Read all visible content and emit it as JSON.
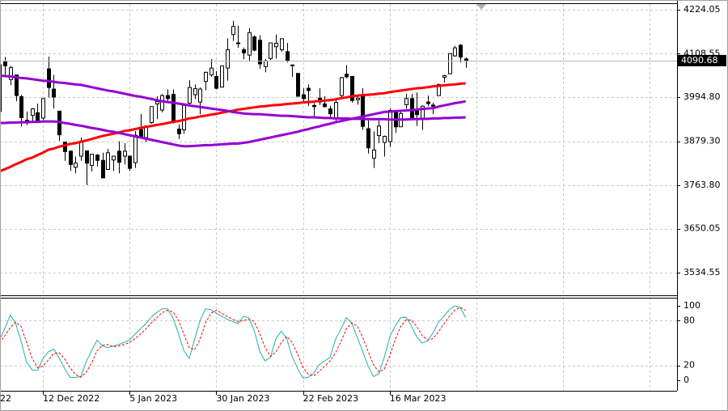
{
  "chart_data": [
    {
      "type": "candlestick",
      "categories": [
        "22",
        null,
        null,
        null,
        null,
        null,
        null,
        null,
        "12 Dec 2022",
        null,
        null,
        null,
        null,
        null,
        null,
        null,
        null,
        null,
        null,
        null,
        null,
        null,
        null,
        null,
        "5 Jan 2023",
        null,
        null,
        null,
        null,
        null,
        null,
        null,
        null,
        null,
        null,
        null,
        null,
        null,
        null,
        null,
        "30 Jan 2023",
        null,
        null,
        null,
        null,
        null,
        null,
        null,
        null,
        null,
        null,
        null,
        null,
        null,
        null,
        null,
        "22 Feb 2023",
        null,
        null,
        null,
        null,
        null,
        null,
        null,
        null,
        null,
        null,
        null,
        null,
        null,
        null,
        null,
        "16 Mar 2023",
        null,
        null,
        null,
        null,
        null,
        null,
        null,
        null,
        null,
        null,
        null,
        null,
        null,
        null
      ],
      "open": [
        3957,
        4087,
        4041,
        4053,
        3996,
        3934,
        3947,
        3954,
        3940,
        4069,
        4016,
        3958,
        3877,
        3853,
        3811,
        3840,
        3854,
        3816,
        3843,
        3829,
        3805,
        3830,
        3853,
        3840,
        3840,
        3823,
        3910,
        3889,
        3928,
        3977,
        3961,
        3999,
        4002,
        3911,
        3909,
        3979,
        4001,
        3982,
        4036,
        4053,
        4049,
        4021,
        4071,
        4159,
        4137,
        4119,
        4105,
        4153,
        4144,
        4075,
        4096,
        4127,
        4119,
        4114,
        4078,
        4057,
        4001,
        4018,
        3973,
        3992,
        3977,
        3964,
        3938,
        3999,
        4055,
        4049,
        3988,
        3999,
        3912,
        3835,
        3894,
        3876,
        3878,
        3959,
        3917,
        3975,
        3991,
        3960,
        3939,
        3982,
        3974,
        3999,
        4047,
        4056,
        4103,
        4131,
        4095
      ],
      "high": [
        4080,
        4100,
        4077,
        4053,
        4001,
        3957,
        3966,
        3978,
        3990,
        4101,
        4053,
        3958,
        3877,
        3855,
        3839,
        3889,
        3854,
        3846,
        3846,
        3849,
        3859,
        3839,
        3879,
        3874,
        3840,
        3906,
        3951,
        3919,
        3970,
        3997,
        4003,
        4015,
        4015,
        3923,
        3973,
        4039,
        4028,
        4020,
        4061,
        4095,
        4063,
        4077,
        4149,
        4195,
        4182,
        4125,
        4176,
        4157,
        4157,
        4095,
        4138,
        4159,
        4149,
        4137,
        4081,
        4057,
        4018,
        4028,
        3979,
        4018,
        3997,
        3972,
        3990,
        4048,
        4079,
        4051,
        4001,
        4018,
        3934,
        3905,
        3937,
        3894,
        3965,
        3959,
        3956,
        4003,
        4003,
        4007,
        3973,
        3999,
        3980,
        4030,
        4053,
        4110,
        4129,
        4134,
        4099
      ],
      "low": [
        3938,
        4050,
        4026,
        3984,
        3918,
        3922,
        3933,
        3934,
        3935,
        3994,
        3965,
        3880,
        3828,
        3801,
        3795,
        3828,
        3764,
        3800,
        3813,
        3782,
        3805,
        3801,
        3795,
        3818,
        3802,
        3809,
        3888,
        3877,
        3925,
        3937,
        3955,
        3985,
        3926,
        3885,
        3899,
        3972,
        3990,
        3950,
        4013,
        4048,
        4015,
        4021,
        4038,
        4142,
        4124,
        4094,
        4088,
        4115,
        4069,
        4060,
        4092,
        4096,
        4114,
        4086,
        4048,
        3996,
        3981,
        3972,
        3943,
        3974,
        3968,
        3940,
        3928,
        3995,
        4044,
        3980,
        3975,
        3909,
        3847,
        3809,
        3874,
        3839,
        3864,
        3901,
        3917,
        3965,
        3937,
        3919,
        3909,
        3971,
        3950,
        3999,
        4033,
        4056,
        4101,
        4086,
        4072
      ],
      "close": [
        4080,
        4077,
        4072,
        3999,
        3941,
        3934,
        3964,
        3934,
        3991,
        4020,
        3995,
        3896,
        3852,
        3818,
        3822,
        3878,
        3822,
        3845,
        3829,
        3783,
        3849,
        3840,
        3824,
        3853,
        3808,
        3895,
        3892,
        3919,
        3970,
        3983,
        3999,
        3991,
        3929,
        3899,
        3973,
        4020,
        4017,
        4016,
        4060,
        4071,
        4018,
        4077,
        4119,
        4180,
        4136,
        4111,
        4164,
        4118,
        4082,
        4090,
        4137,
        4136,
        4148,
        4090,
        4079,
        3997,
        3991,
        4012,
        3970,
        3982,
        3970,
        3951,
        3981,
        4046,
        4048,
        3986,
        3992,
        3918,
        3862,
        3856,
        3919,
        3892,
        3960,
        3917,
        3952,
        3991,
        3937,
        3949,
        3971,
        3978,
        3971,
        4028,
        4051,
        4109,
        4124,
        4100,
        4090.68
      ],
      "up_color": "#ffffff",
      "down_color": "#000000",
      "wick_color": "#000000",
      "overlays": [
        {
          "color": "#ff0000",
          "values": [
            3800,
            3806,
            3812,
            3819,
            3825,
            3832,
            3836,
            3843,
            3849,
            3857,
            3860,
            3865,
            3868,
            3872,
            3874,
            3878,
            3881,
            3885,
            3889,
            3893,
            3896,
            3899,
            3902,
            3906,
            3908,
            3911,
            3914,
            3917,
            3919,
            3922,
            3924,
            3927,
            3930,
            3932,
            3935,
            3939,
            3941,
            3944,
            3946,
            3949,
            3951,
            3954,
            3957,
            3959,
            3962,
            3964,
            3966,
            3968,
            3970,
            3971,
            3973,
            3974,
            3975,
            3977,
            3978,
            3979,
            3981,
            3982,
            3983,
            3985,
            3986,
            3987,
            3989,
            3992,
            3994,
            3997,
            3999,
            4000,
            4001,
            4002,
            4004,
            4005,
            4008,
            4010,
            4012,
            4014,
            4016,
            4018,
            4019,
            4021,
            4023,
            4024,
            4026,
            4027,
            4028,
            4030,
            4031
          ]
        },
        {
          "color": "#9400d3",
          "values": [
            4052,
            4050,
            4049,
            4047,
            4045,
            4044,
            4042,
            4040,
            4038,
            4037,
            4035,
            4033,
            4032,
            4030,
            4028,
            4027,
            4024,
            4021,
            4018,
            4015,
            4012,
            4010,
            4007,
            4004,
            4001,
            3998,
            3996,
            3993,
            3990,
            3987,
            3984,
            3982,
            3980,
            3978,
            3976,
            3973,
            3971,
            3969,
            3967,
            3965,
            3963,
            3961,
            3959,
            3956,
            3954,
            3952,
            3951,
            3950,
            3950,
            3949,
            3948,
            3947,
            3946,
            3946,
            3945,
            3944,
            3943,
            3942,
            3942,
            3941,
            3940,
            3940,
            3939,
            3939,
            3939,
            3938,
            3938,
            3938,
            3937,
            3937,
            3937,
            3937,
            3936,
            3936,
            3936,
            3936,
            3937,
            3937,
            3938,
            3938,
            3939,
            3939,
            3940,
            3940,
            3941,
            3941,
            3942
          ]
        },
        {
          "color": "#9400d3",
          "values": [
            3927,
            3927,
            3928,
            3928,
            3929,
            3929,
            3930,
            3930,
            3931,
            3931,
            3931,
            3930,
            3927,
            3925,
            3922,
            3920,
            3917,
            3914,
            3912,
            3909,
            3906,
            3904,
            3901,
            3898,
            3895,
            3892,
            3889,
            3886,
            3883,
            3880,
            3877,
            3874,
            3871,
            3868,
            3866,
            3866,
            3867,
            3868,
            3869,
            3869,
            3870,
            3871,
            3872,
            3873,
            3873,
            3875,
            3877,
            3880,
            3883,
            3886,
            3889,
            3892,
            3895,
            3898,
            3901,
            3904,
            3908,
            3911,
            3915,
            3918,
            3922,
            3925,
            3929,
            3932,
            3935,
            3938,
            3941,
            3944,
            3947,
            3950,
            3953,
            3956,
            3957,
            3958,
            3959,
            3960,
            3961,
            3962,
            3964,
            3965,
            3966,
            3970,
            3973,
            3976,
            3979,
            3981,
            3984
          ]
        }
      ],
      "last_price": 4090.68,
      "ylim": [
        3475.2,
        4238.9
      ],
      "yticks": [
        4224.05,
        4108.55,
        {
          "value": 3994.8,
          "label": "3994.80"
        },
        {
          "value": 3879.3,
          "label": "3879.30"
        },
        {
          "value": 3763.8,
          "label": "3763.80"
        },
        3650.05,
        3534.55
      ],
      "grid": true
    },
    {
      "type": "line",
      "ylim": [
        -14.1,
        110.9
      ],
      "yticks": [
        0,
        20,
        80,
        100
      ],
      "levels": [
        20,
        80
      ],
      "series": [
        {
          "color": "#20b2aa",
          "dash": false,
          "values": [
            54,
            70,
            88,
            76,
            52,
            24,
            14,
            13,
            29,
            38,
            42,
            30,
            16,
            4,
            4,
            5,
            25,
            40,
            54,
            46,
            44,
            46,
            48,
            51,
            54,
            62,
            69,
            76,
            85,
            91,
            96,
            96,
            84,
            63,
            40,
            29,
            55,
            80,
            96,
            95,
            90,
            86,
            82,
            79,
            76,
            86,
            84,
            67,
            39,
            26,
            31,
            56,
            66,
            56,
            32,
            16,
            3,
            4,
            10,
            21,
            26,
            31,
            55,
            69,
            84,
            77,
            58,
            39,
            19,
            5,
            9,
            31,
            58,
            73,
            84,
            85,
            73,
            58,
            50,
            53,
            64,
            78,
            86,
            95,
            100,
            98,
            84
          ]
        },
        {
          "color": "#ff0000",
          "dash": true,
          "values": [
            50,
            60,
            71,
            78,
            72,
            51,
            30,
            17,
            19,
            27,
            36,
            37,
            29,
            17,
            8,
            4,
            11,
            23,
            40,
            47,
            48,
            45,
            46,
            48,
            51,
            56,
            62,
            69,
            77,
            84,
            91,
            94,
            92,
            81,
            62,
            44,
            41,
            55,
            77,
            90,
            94,
            90,
            86,
            82,
            79,
            80,
            82,
            79,
            63,
            44,
            32,
            38,
            51,
            59,
            51,
            35,
            17,
            8,
            6,
            12,
            19,
            26,
            37,
            52,
            69,
            77,
            73,
            58,
            39,
            21,
            11,
            15,
            33,
            54,
            72,
            81,
            81,
            72,
            60,
            54,
            56,
            65,
            76,
            86,
            94,
            98,
            94
          ]
        }
      ]
    }
  ]
}
